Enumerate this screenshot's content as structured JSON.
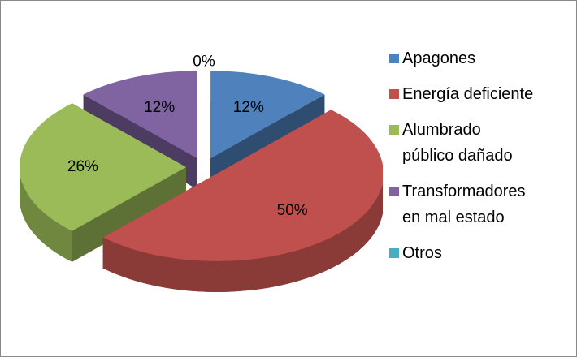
{
  "chart_data": {
    "type": "pie",
    "categories": [
      "Apagones",
      "Energía deficiente",
      "Alumbrado público dañado",
      "Transformadores en mal estado",
      "Otros"
    ],
    "values": [
      12,
      50,
      26,
      12,
      0
    ],
    "value_labels": [
      "12%",
      "50%",
      "26%",
      "12%",
      "0%"
    ],
    "colors": [
      "#4f81bd",
      "#c0504d",
      "#9bbb59",
      "#8064a2",
      "#4bacc6"
    ],
    "legend": "right"
  }
}
